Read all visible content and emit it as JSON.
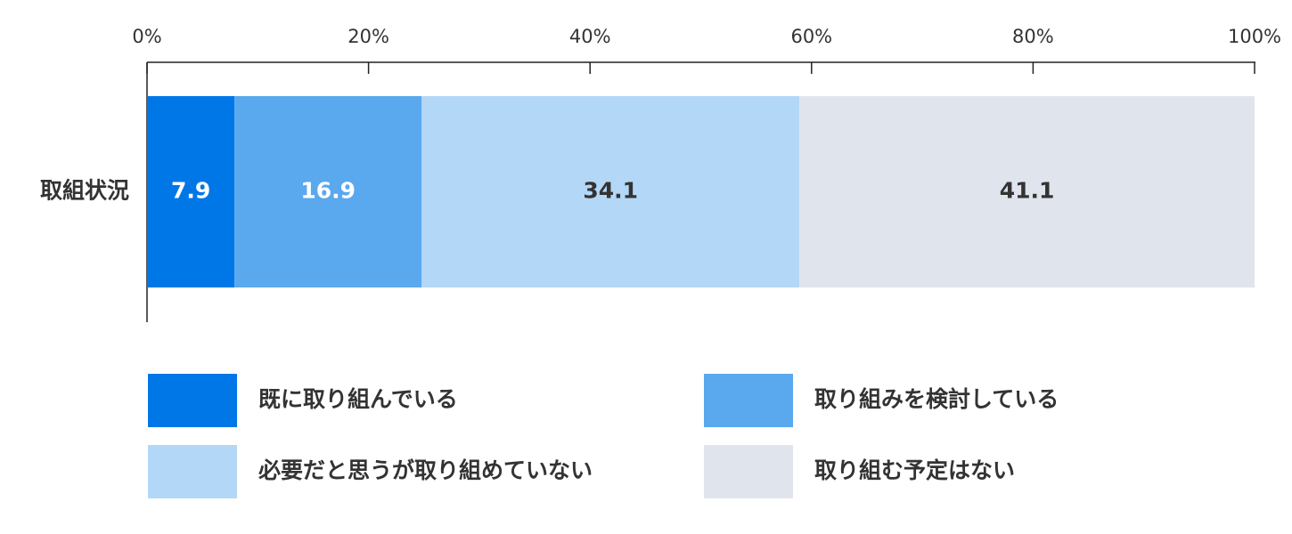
{
  "chart_data": {
    "type": "stacked-bar-horizontal",
    "categories": [
      "取組状況"
    ],
    "series": [
      {
        "name": "既に取り組んでいる",
        "color": "#0077e6",
        "label_color": "#ffffff",
        "values": [
          7.9
        ]
      },
      {
        "name": "取り組みを検討している",
        "color": "#5aa8ee",
        "label_color": "#ffffff",
        "values": [
          16.9
        ]
      },
      {
        "name": "必要だと思うが取り組めていない",
        "color": "#b3d7f7",
        "label_color": "#333333",
        "values": [
          34.1
        ]
      },
      {
        "name": "取り組む予定はない",
        "color": "#e0e4ec",
        "label_color": "#333333",
        "values": [
          41.1
        ]
      }
    ],
    "xlim": [
      0,
      100
    ],
    "xticks": [
      {
        "value": 0,
        "label": "0%"
      },
      {
        "value": 20,
        "label": "20%"
      },
      {
        "value": 40,
        "label": "40%"
      },
      {
        "value": 60,
        "label": "60%"
      },
      {
        "value": 80,
        "label": "80%"
      },
      {
        "value": 100,
        "label": "100%"
      }
    ],
    "legend_columns": 2
  }
}
